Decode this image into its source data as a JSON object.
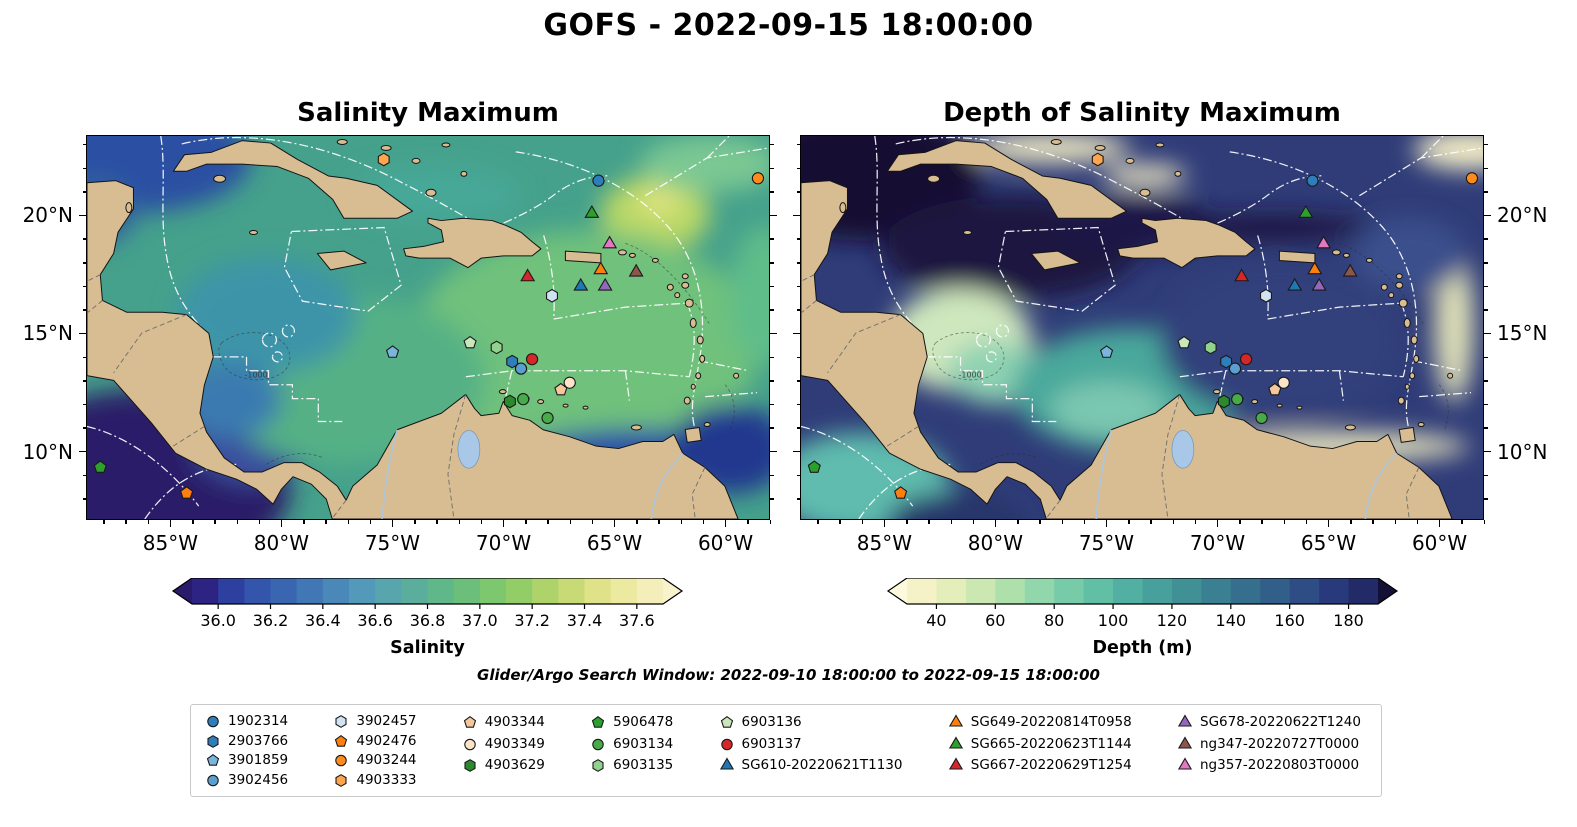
{
  "chart_data": {
    "type": "map",
    "title": "GOFS - 2022-09-15 18:00:00",
    "search_window": "Glider/Argo Search Window: 2022-09-10 18:00:00 to 2022-09-15 18:00:00",
    "extent": {
      "lon": [
        -88.8,
        -58.0
      ],
      "lat": [
        7.1,
        23.4
      ]
    },
    "lon_ticks": [
      {
        "v": -85,
        "label": "85°W"
      },
      {
        "v": -80,
        "label": "80°W"
      },
      {
        "v": -75,
        "label": "75°W"
      },
      {
        "v": -70,
        "label": "70°W"
      },
      {
        "v": -65,
        "label": "65°W"
      },
      {
        "v": -60,
        "label": "60°W"
      }
    ],
    "lat_ticks": [
      {
        "v": 20,
        "label": "20°N"
      },
      {
        "v": 15,
        "label": "15°N"
      },
      {
        "v": 10,
        "label": "10°N"
      }
    ],
    "contour_label": "-1000",
    "panels": [
      {
        "title": "Salinity Maximum",
        "colorbar": {
          "label": "Salinity",
          "range": [
            35.9,
            37.7
          ],
          "ticks": [
            {
              "v": 36.0,
              "label": "36.0"
            },
            {
              "v": 36.2,
              "label": "36.2"
            },
            {
              "v": 36.4,
              "label": "36.4"
            },
            {
              "v": 36.6,
              "label": "36.6"
            },
            {
              "v": 36.8,
              "label": "36.8"
            },
            {
              "v": 37.0,
              "label": "37.0"
            },
            {
              "v": 37.2,
              "label": "37.2"
            },
            {
              "v": 37.4,
              "label": "37.4"
            },
            {
              "v": 37.6,
              "label": "37.6"
            }
          ],
          "under": "#2a1a6b",
          "over": "#f8f3cd",
          "colors": [
            "#2c2383",
            "#2e409f",
            "#3355ab",
            "#3a66b1",
            "#4277b6",
            "#4a88ba",
            "#539aba",
            "#58a5ad",
            "#5aae9b",
            "#60b789",
            "#6cbf7a",
            "#7dc76e",
            "#93cd67",
            "#aed36a",
            "#c8da75",
            "#dfe288",
            "#ece9a0",
            "#f4efba"
          ]
        }
      },
      {
        "title": "Depth of Salinity Maximum",
        "colorbar": {
          "label": "Depth (m)",
          "range": [
            30,
            190
          ],
          "ticks": [
            {
              "v": 40,
              "label": "40"
            },
            {
              "v": 60,
              "label": "60"
            },
            {
              "v": 80,
              "label": "80"
            },
            {
              "v": 100,
              "label": "100"
            },
            {
              "v": 120,
              "label": "120"
            },
            {
              "v": 140,
              "label": "140"
            },
            {
              "v": 160,
              "label": "160"
            },
            {
              "v": 180,
              "label": "180"
            }
          ],
          "under": "#fdf9dc",
          "over": "#151036",
          "colors": [
            "#f6f2c8",
            "#e4eebb",
            "#cbe8b2",
            "#aee0ab",
            "#92d6ab",
            "#77cba9",
            "#61bfa6",
            "#52b0a2",
            "#48a09c",
            "#419096",
            "#3b7f92",
            "#366f8e",
            "#325e8a",
            "#2e4d85",
            "#293a7c",
            "#232a68"
          ]
        }
      }
    ],
    "platforms": [
      {
        "id": "1902314",
        "shape": "circle",
        "color": "#2e7ebc",
        "points": [
          [
            -65.7,
            21.5
          ]
        ]
      },
      {
        "id": "2903766",
        "shape": "hexagon",
        "color": "#2e7ebc",
        "points": [
          [
            -69.6,
            13.8
          ]
        ]
      },
      {
        "id": "3901859",
        "shape": "pentagon",
        "color": "#7ab6dc",
        "points": [
          [
            -75.0,
            14.2
          ]
        ]
      },
      {
        "id": "3902456",
        "shape": "circle",
        "color": "#5b9fd0",
        "points": [
          [
            -69.2,
            13.5
          ]
        ]
      },
      {
        "id": "3902457",
        "shape": "hexagon",
        "color": "#cfe3f2",
        "points": [
          [
            -67.8,
            16.6
          ]
        ]
      },
      {
        "id": "4902476",
        "shape": "pentagon",
        "color": "#ff7f0e",
        "points": [
          [
            -84.3,
            8.2
          ]
        ]
      },
      {
        "id": "4903244",
        "shape": "circle",
        "color": "#ff8c1a",
        "points": [
          [
            -58.5,
            21.6
          ]
        ]
      },
      {
        "id": "4903333",
        "shape": "hexagon",
        "color": "#ffa54d",
        "points": [
          [
            -75.4,
            22.4
          ]
        ]
      },
      {
        "id": "4903344",
        "shape": "pentagon",
        "color": "#f4c79c",
        "points": [
          [
            -67.4,
            12.6
          ]
        ]
      },
      {
        "id": "4903349",
        "shape": "circle",
        "color": "#fbe4c8",
        "points": [
          [
            -67.0,
            12.9
          ]
        ]
      },
      {
        "id": "4903629",
        "shape": "hexagon",
        "color": "#2b8a2b",
        "points": [
          [
            -69.7,
            12.1
          ]
        ]
      },
      {
        "id": "5906478",
        "shape": "pentagon",
        "color": "#2ca02c",
        "points": [
          [
            -88.2,
            9.3
          ]
        ]
      },
      {
        "id": "6903134",
        "shape": "circle",
        "color": "#46ab48",
        "points": [
          [
            -69.1,
            12.2
          ],
          [
            -68.0,
            11.4
          ]
        ]
      },
      {
        "id": "6903135",
        "shape": "hexagon",
        "color": "#93d18e",
        "points": [
          [
            -70.3,
            14.4
          ]
        ]
      },
      {
        "id": "6903136",
        "shape": "pentagon",
        "color": "#c9e7bb",
        "points": [
          [
            -71.5,
            14.6
          ]
        ]
      },
      {
        "id": "6903137",
        "shape": "circle",
        "color": "#d62728",
        "points": [
          [
            -68.7,
            13.9
          ]
        ]
      },
      {
        "id": "SG610-20220621T1130",
        "shape": "triangle",
        "color": "#1f77b4",
        "points": [
          [
            -66.5,
            17.0
          ]
        ]
      },
      {
        "id": "SG649-20220814T0958",
        "shape": "triangle",
        "color": "#ff7f0e",
        "points": [
          [
            -65.6,
            17.7
          ]
        ]
      },
      {
        "id": "SG665-20220623T1144",
        "shape": "triangle",
        "color": "#2ca02c",
        "points": [
          [
            -66.0,
            20.1
          ]
        ]
      },
      {
        "id": "SG667-20220629T1254",
        "shape": "triangle",
        "color": "#d62728",
        "points": [
          [
            -68.9,
            17.4
          ]
        ]
      },
      {
        "id": "SG678-20220622T1240",
        "shape": "triangle",
        "color": "#9467bd",
        "points": [
          [
            -65.4,
            17.0
          ]
        ]
      },
      {
        "id": "ng347-20220727T0000",
        "shape": "triangle",
        "color": "#8c564b",
        "points": [
          [
            -64.0,
            17.6
          ]
        ]
      },
      {
        "id": "ng357-20220803T0000",
        "shape": "triangle",
        "color": "#e377c2",
        "points": [
          [
            -65.2,
            18.8
          ]
        ]
      }
    ],
    "legend_columns": [
      [
        "1902314",
        "2903766",
        "3901859",
        "3902456"
      ],
      [
        "3902457",
        "4902476",
        "4903244",
        "4903333"
      ],
      [
        "4903344",
        "4903349",
        "4903629"
      ],
      [
        "5906478",
        "6903134",
        "6903135"
      ],
      [
        "6903136",
        "6903137",
        "SG610-20220621T1130"
      ],
      [
        "SG649-20220814T0958",
        "SG665-20220623T1144",
        "SG667-20220629T1254"
      ],
      [
        "SG678-20220622T1240",
        "ng347-20220727T0000",
        "ng357-20220803T0000"
      ]
    ]
  }
}
